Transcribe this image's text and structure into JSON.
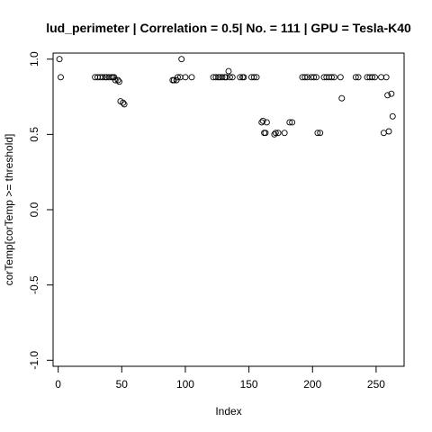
{
  "chart_data": {
    "type": "scatter",
    "title": "lud_perimeter | Correlation = 0.5| No. = 111 | GPU = Tesla-K40",
    "xlabel": "Index",
    "ylabel": "corTemp[corTemp >= threshold]",
    "xlim": [
      -4,
      272
    ],
    "ylim": [
      -1.04,
      1.04
    ],
    "x_ticks": [
      0,
      50,
      100,
      150,
      200,
      250
    ],
    "y_ticks": [
      -1.0,
      -0.5,
      0.0,
      0.5,
      1.0
    ],
    "y_tick_labels": [
      "-1.0",
      "-0.5",
      "0.0",
      "0.5",
      "1.0"
    ],
    "grid": false,
    "marker": "open-circle",
    "points": [
      {
        "x": 1,
        "y": 1.0
      },
      {
        "x": 2,
        "y": 0.88
      },
      {
        "x": 29,
        "y": 0.88
      },
      {
        "x": 31,
        "y": 0.88
      },
      {
        "x": 33,
        "y": 0.88
      },
      {
        "x": 35,
        "y": 0.88
      },
      {
        "x": 37,
        "y": 0.88
      },
      {
        "x": 38,
        "y": 0.88
      },
      {
        "x": 40,
        "y": 0.88
      },
      {
        "x": 42,
        "y": 0.88
      },
      {
        "x": 43,
        "y": 0.88
      },
      {
        "x": 44,
        "y": 0.88
      },
      {
        "x": 45,
        "y": 0.86
      },
      {
        "x": 47,
        "y": 0.86
      },
      {
        "x": 48,
        "y": 0.85
      },
      {
        "x": 49,
        "y": 0.72
      },
      {
        "x": 51,
        "y": 0.71
      },
      {
        "x": 52,
        "y": 0.7
      },
      {
        "x": 90,
        "y": 0.86
      },
      {
        "x": 91,
        "y": 0.86
      },
      {
        "x": 93,
        "y": 0.86
      },
      {
        "x": 94,
        "y": 0.88
      },
      {
        "x": 96,
        "y": 0.88
      },
      {
        "x": 97,
        "y": 1.0
      },
      {
        "x": 100,
        "y": 0.88
      },
      {
        "x": 105,
        "y": 0.88
      },
      {
        "x": 122,
        "y": 0.88
      },
      {
        "x": 124,
        "y": 0.88
      },
      {
        "x": 126,
        "y": 0.88
      },
      {
        "x": 127,
        "y": 0.88
      },
      {
        "x": 129,
        "y": 0.88
      },
      {
        "x": 131,
        "y": 0.88
      },
      {
        "x": 132,
        "y": 0.88
      },
      {
        "x": 134,
        "y": 0.92
      },
      {
        "x": 135,
        "y": 0.88
      },
      {
        "x": 137,
        "y": 0.88
      },
      {
        "x": 143,
        "y": 0.88
      },
      {
        "x": 145,
        "y": 0.88
      },
      {
        "x": 146,
        "y": 0.88
      },
      {
        "x": 152,
        "y": 0.88
      },
      {
        "x": 154,
        "y": 0.88
      },
      {
        "x": 156,
        "y": 0.88
      },
      {
        "x": 160,
        "y": 0.58
      },
      {
        "x": 161,
        "y": 0.59
      },
      {
        "x": 162,
        "y": 0.51
      },
      {
        "x": 163,
        "y": 0.51
      },
      {
        "x": 164,
        "y": 0.58
      },
      {
        "x": 170,
        "y": 0.5
      },
      {
        "x": 171,
        "y": 0.51
      },
      {
        "x": 173,
        "y": 0.51
      },
      {
        "x": 178,
        "y": 0.51
      },
      {
        "x": 182,
        "y": 0.58
      },
      {
        "x": 184,
        "y": 0.58
      },
      {
        "x": 192,
        "y": 0.88
      },
      {
        "x": 194,
        "y": 0.88
      },
      {
        "x": 196,
        "y": 0.88
      },
      {
        "x": 199,
        "y": 0.88
      },
      {
        "x": 201,
        "y": 0.88
      },
      {
        "x": 203,
        "y": 0.88
      },
      {
        "x": 204,
        "y": 0.51
      },
      {
        "x": 206,
        "y": 0.51
      },
      {
        "x": 209,
        "y": 0.88
      },
      {
        "x": 211,
        "y": 0.88
      },
      {
        "x": 213,
        "y": 0.88
      },
      {
        "x": 215,
        "y": 0.88
      },
      {
        "x": 217,
        "y": 0.88
      },
      {
        "x": 222,
        "y": 0.88
      },
      {
        "x": 223,
        "y": 0.74
      },
      {
        "x": 234,
        "y": 0.88
      },
      {
        "x": 236,
        "y": 0.88
      },
      {
        "x": 243,
        "y": 0.88
      },
      {
        "x": 245,
        "y": 0.88
      },
      {
        "x": 247,
        "y": 0.88
      },
      {
        "x": 249,
        "y": 0.88
      },
      {
        "x": 254,
        "y": 0.88
      },
      {
        "x": 256,
        "y": 0.51
      },
      {
        "x": 258,
        "y": 0.88
      },
      {
        "x": 259,
        "y": 0.76
      },
      {
        "x": 260,
        "y": 0.52
      },
      {
        "x": 262,
        "y": 0.77
      },
      {
        "x": 263,
        "y": 0.62
      }
    ]
  }
}
